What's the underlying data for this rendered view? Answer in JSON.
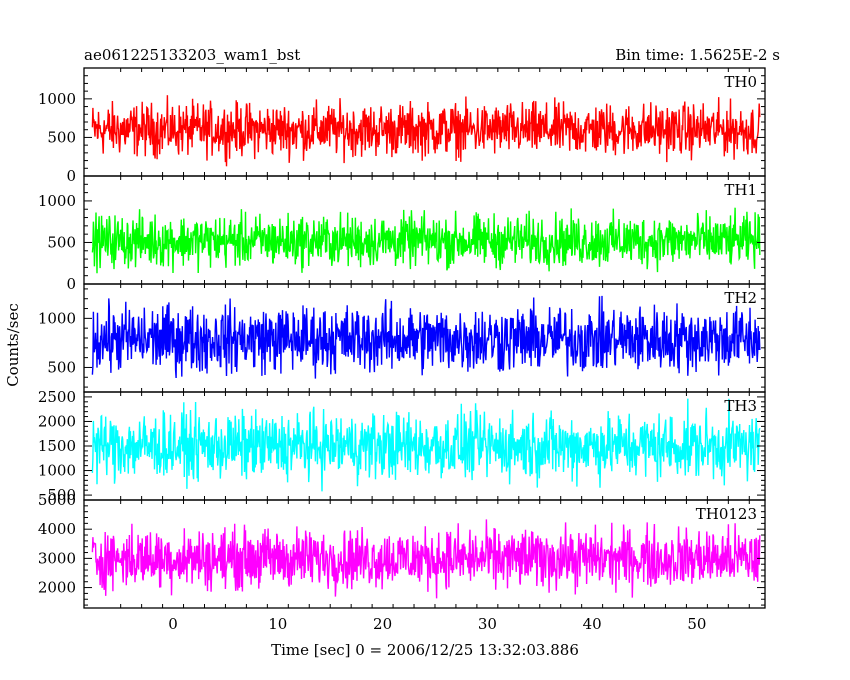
{
  "header": {
    "title": "ae061225133203_wam1_bst",
    "bin_time": "Bin time: 1.5625E-2 s"
  },
  "axes": {
    "ylabel": "Counts/sec",
    "xlabel": "Time [sec] 0 = 2006/12/25 13:32:03.886"
  },
  "chart_data": {
    "type": "line",
    "x_range": [
      -8.5,
      56.5
    ],
    "data_x_range": [
      -7.7,
      56.0
    ],
    "x_ticks": [
      0,
      10,
      20,
      30,
      40,
      50
    ],
    "x_tick_labels": [
      "0",
      "10",
      "20",
      "30",
      "40",
      "50"
    ],
    "panels": [
      {
        "name": "TH0",
        "color": "#ff0000",
        "ylim": [
          0,
          1400
        ],
        "y_ticks": [
          0,
          500,
          1000
        ],
        "y_tick_labels": [
          "0",
          "500",
          "1000"
        ],
        "mean": 600,
        "amplitude": 500,
        "points": 1300
      },
      {
        "name": "TH1",
        "color": "#00ff00",
        "ylim": [
          0,
          1300
        ],
        "y_ticks": [
          0,
          500,
          1000
        ],
        "y_tick_labels": [
          "0",
          "500",
          "1000"
        ],
        "mean": 520,
        "amplitude": 460,
        "points": 1300
      },
      {
        "name": "TH2",
        "color": "#0000ff",
        "ylim": [
          250,
          1350
        ],
        "y_ticks": [
          500,
          1000
        ],
        "y_tick_labels": [
          "500",
          "1000"
        ],
        "mean": 790,
        "amplitude": 500,
        "points": 1300
      },
      {
        "name": "TH3",
        "color": "#00ffff",
        "ylim": [
          400,
          2600
        ],
        "y_ticks": [
          500,
          1000,
          1500,
          2000,
          2500
        ],
        "y_tick_labels": [
          "500",
          "1000",
          "1500",
          "2000",
          "2500"
        ],
        "mean": 1500,
        "amplitude": 1000,
        "points": 1300
      },
      {
        "name": "TH0123",
        "color": "#ff00ff",
        "ylim": [
          1300,
          5000
        ],
        "y_ticks": [
          2000,
          3000,
          4000,
          5000
        ],
        "y_tick_labels": [
          "2000",
          "3000",
          "4000",
          "5000"
        ],
        "mean": 3000,
        "amplitude": 1500,
        "points": 1300
      }
    ]
  }
}
